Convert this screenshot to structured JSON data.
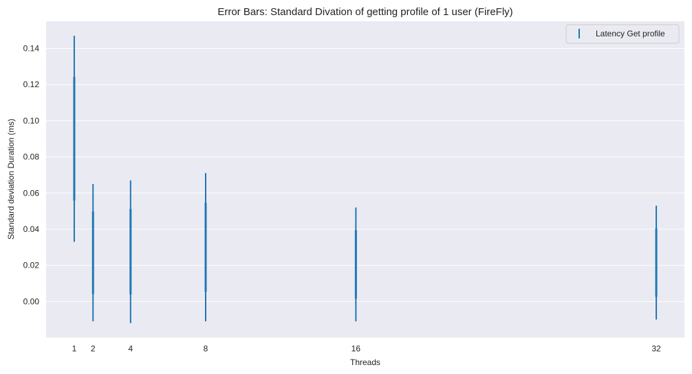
{
  "chart_data": {
    "type": "errorbar",
    "title": "Error Bars: Standard Divation of getting profile of 1 user (FireFly)",
    "xlabel": "Threads",
    "ylabel": "Standard deviation Duration (ms)",
    "x_ticks": [
      1,
      2,
      4,
      8,
      16,
      32
    ],
    "x_tick_labels": [
      "1",
      "2",
      "4",
      "8",
      "16",
      "32"
    ],
    "xlim": [
      -0.5,
      33.5
    ],
    "y_ticks": [
      0.0,
      0.02,
      0.04,
      0.06,
      0.08,
      0.1,
      0.12,
      0.14
    ],
    "y_tick_labels": [
      "0.00",
      "0.02",
      "0.04",
      "0.06",
      "0.08",
      "0.10",
      "0.12",
      "0.14"
    ],
    "ylim": [
      -0.02,
      0.155
    ],
    "grid": true,
    "legend_position": "top-right",
    "colors": {
      "series": "#1f77b4",
      "plot_bg": "#eaeaf2",
      "grid": "#ffffff"
    },
    "series": [
      {
        "name": "Latency Get profile",
        "x": [
          1,
          2,
          4,
          8,
          16,
          32
        ],
        "lower": [
          0.033,
          -0.011,
          -0.012,
          -0.011,
          -0.011,
          -0.01
        ],
        "upper": [
          0.147,
          0.065,
          0.067,
          0.071,
          0.052,
          0.053
        ]
      }
    ]
  }
}
